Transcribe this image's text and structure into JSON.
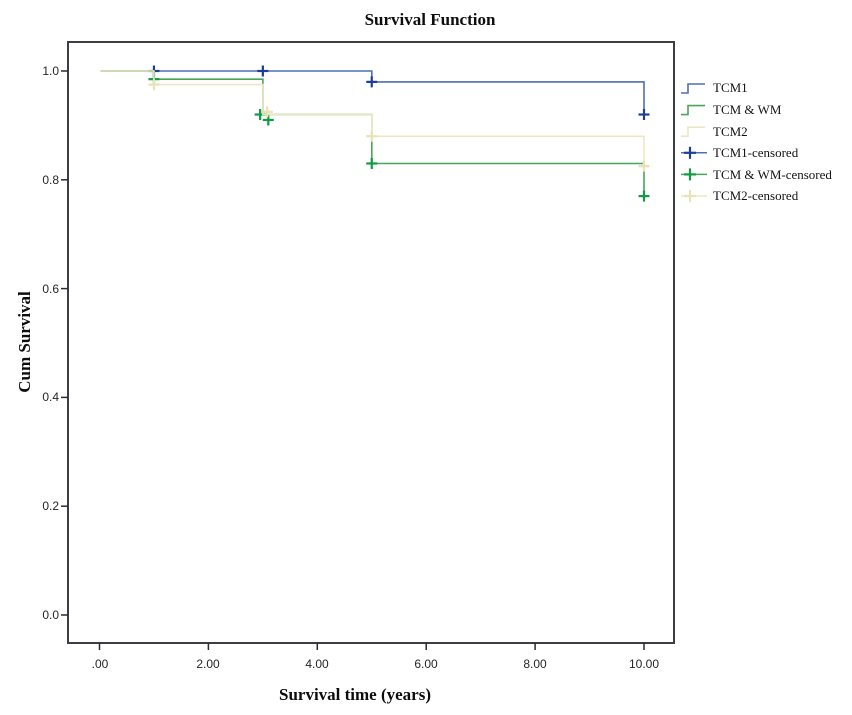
{
  "title": "Survival Function",
  "axes": {
    "x_label": "Survival time (years)",
    "y_label": "Cum Survival",
    "x_tick_labels": [
      ".00",
      "2.00",
      "4.00",
      "6.00",
      "8.00",
      "10.00"
    ],
    "x_tick_values": [
      0,
      2,
      4,
      6,
      8,
      10
    ],
    "y_tick_labels": [
      "0.0",
      "0.2",
      "0.4",
      "0.6",
      "0.8",
      "1.0"
    ],
    "y_tick_values": [
      0,
      0.2,
      0.4,
      0.6,
      0.8,
      1.0
    ],
    "grid": "off",
    "border_color": "#3b3e44",
    "tick_color": "#2b2b2b"
  },
  "legend": {
    "position": "right-top-outside",
    "items": [
      {
        "label": "TCM1",
        "type": "step",
        "line_color": "#4f6eb1",
        "marker_color": "#1d3d99"
      },
      {
        "label": "TCM & WM",
        "type": "step",
        "line_color": "#48a65a",
        "marker_color": "#109b41"
      },
      {
        "label": "TCM2",
        "type": "step",
        "line_color": "#ece7c2",
        "marker_color": "#e8e2b4"
      },
      {
        "label": "TCM1-censored",
        "type": "censor",
        "line_color": "#4f6eb1",
        "marker_color": "#1d3d99"
      },
      {
        "label": "TCM & WM-censored",
        "type": "censor",
        "line_color": "#48a65a",
        "marker_color": "#109b41"
      },
      {
        "label": "TCM2-censored",
        "type": "censor",
        "line_color": "#ece7c2",
        "marker_color": "#e8e2b4"
      }
    ]
  },
  "chart_data": {
    "type": "line",
    "subtype": "kaplan-meier-step-survival",
    "xlabel": "Survival time (years)",
    "ylabel": "Cum Survival",
    "xlim": [
      0,
      10
    ],
    "ylim": [
      0,
      1.05
    ],
    "series": [
      {
        "name": "TCM1",
        "line_color": "#4f6eb1",
        "marker_color": "#1d3d99",
        "steps": [
          [
            0.02,
            1.0
          ],
          [
            5,
            1.0
          ],
          [
            5,
            0.98
          ],
          [
            10,
            0.98
          ],
          [
            10,
            0.92
          ]
        ],
        "censored": [
          [
            1,
            1.0
          ],
          [
            3,
            1.0
          ],
          [
            5,
            0.98
          ],
          [
            10,
            0.92
          ]
        ]
      },
      {
        "name": "TCM & WM",
        "line_color": "#48a65a",
        "marker_color": "#109b41",
        "steps": [
          [
            0.02,
            1.0
          ],
          [
            1,
            1.0
          ],
          [
            1,
            0.985
          ],
          [
            3,
            0.985
          ],
          [
            3,
            0.92
          ],
          [
            5,
            0.92
          ],
          [
            5,
            0.83
          ],
          [
            10,
            0.83
          ],
          [
            10,
            0.77
          ]
        ],
        "censored": [
          [
            1,
            0.985
          ],
          [
            2.95,
            0.92
          ],
          [
            3.1,
            0.91
          ],
          [
            5,
            0.83
          ],
          [
            10,
            0.77
          ]
        ]
      },
      {
        "name": "TCM2",
        "line_color": "#ece7c2",
        "marker_color": "#e8e2b4",
        "steps": [
          [
            0.02,
            1.0
          ],
          [
            1,
            1.0
          ],
          [
            1,
            0.975
          ],
          [
            3,
            0.975
          ],
          [
            3,
            0.92
          ],
          [
            5,
            0.92
          ],
          [
            5,
            0.88
          ],
          [
            10,
            0.88
          ],
          [
            10,
            0.825
          ]
        ],
        "censored": [
          [
            1,
            0.975
          ],
          [
            3.08,
            0.925
          ],
          [
            5,
            0.88
          ],
          [
            10,
            0.825
          ]
        ]
      }
    ]
  }
}
